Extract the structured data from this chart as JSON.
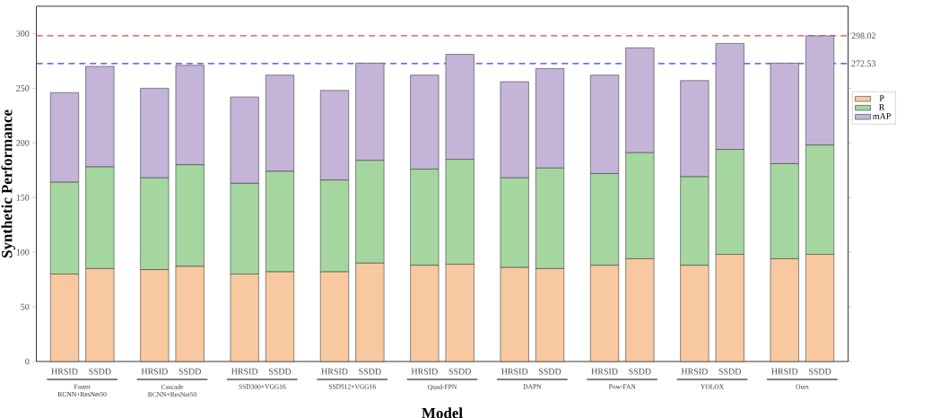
{
  "chart_data": {
    "type": "bar",
    "stacked": true,
    "xlabel": "Model",
    "ylabel": "Synthetic Performance",
    "categories": [
      "HRSID",
      "SSDD",
      "HRSID",
      "SSDD",
      "HRSID",
      "SSDD",
      "HRSID",
      "SSDD",
      "HRSID",
      "SSDD",
      "HRSID",
      "SSDD",
      "HRSID",
      "SSDD",
      "HRSID",
      "SSDD",
      "HRSID",
      "SSDD"
    ],
    "series": [
      {
        "name": "P",
        "color": "#f8c9a0",
        "values": [
          80,
          85,
          84,
          87,
          80,
          82,
          82,
          90,
          88,
          89,
          86,
          85,
          88,
          94,
          88,
          98,
          94,
          98
        ]
      },
      {
        "name": "R",
        "color": "#a5d6a0",
        "values": [
          84,
          93,
          84,
          93,
          83,
          92,
          84,
          94,
          88,
          96,
          82,
          92,
          84,
          97,
          81,
          96,
          87,
          100
        ]
      },
      {
        "name": "mAP",
        "color": "#c4b4d8",
        "values": [
          82,
          92,
          82,
          91,
          79,
          88,
          82,
          89,
          86,
          96,
          88,
          91,
          90,
          96,
          88,
          97,
          92,
          100
        ]
      }
    ],
    "ylim": [
      0,
      325
    ],
    "yticks": [
      0,
      50,
      100,
      150,
      200,
      250,
      300
    ],
    "ref_lines": [
      {
        "axis": "y",
        "value": 298.02,
        "label": "298.02",
        "color": "#ff3b3b",
        "line_style": "dashed"
      },
      {
        "axis": "y",
        "value": 272.53,
        "label": "272.53",
        "color": "#3b3bff",
        "line_style": "dashed"
      }
    ],
    "annotations": [
      "Faster RCNN+ResNet50",
      "Cascade RCNN+ResNet50",
      "SSD300+VGG16",
      "SSD512+VGG16",
      "Quad-FPN",
      "DAPN",
      "Pow-FAN",
      "YOLOX",
      "Ours"
    ],
    "legend": "right",
    "grid": false
  }
}
